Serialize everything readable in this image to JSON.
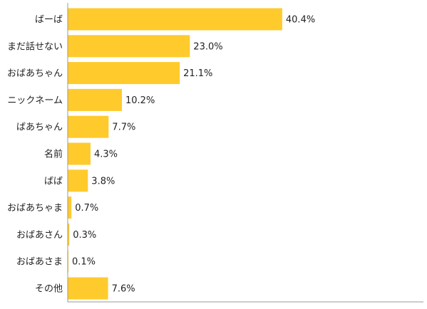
{
  "chart_data": {
    "type": "bar",
    "orientation": "horizontal",
    "categories": [
      "ばーば",
      "まだ話せない",
      "おばあちゃん",
      "ニックネーム",
      "ばあちゃん",
      "名前",
      "ばば",
      "おばあちゃま",
      "おばあさん",
      "おばあさま",
      "その他"
    ],
    "values": [
      40.4,
      23.0,
      21.1,
      10.2,
      7.7,
      4.3,
      3.8,
      0.7,
      0.3,
      0.1,
      7.6
    ],
    "value_labels": [
      "40.4%",
      "23.0%",
      "21.1%",
      "10.2%",
      "7.7%",
      "4.3%",
      "3.8%",
      "0.7%",
      "0.3%",
      "0.1%",
      "7.6%"
    ],
    "xlim": [
      0,
      67
    ],
    "bar_color": "#FFCA2C",
    "axis_color": "#999999",
    "grid": false,
    "legend": "none"
  }
}
